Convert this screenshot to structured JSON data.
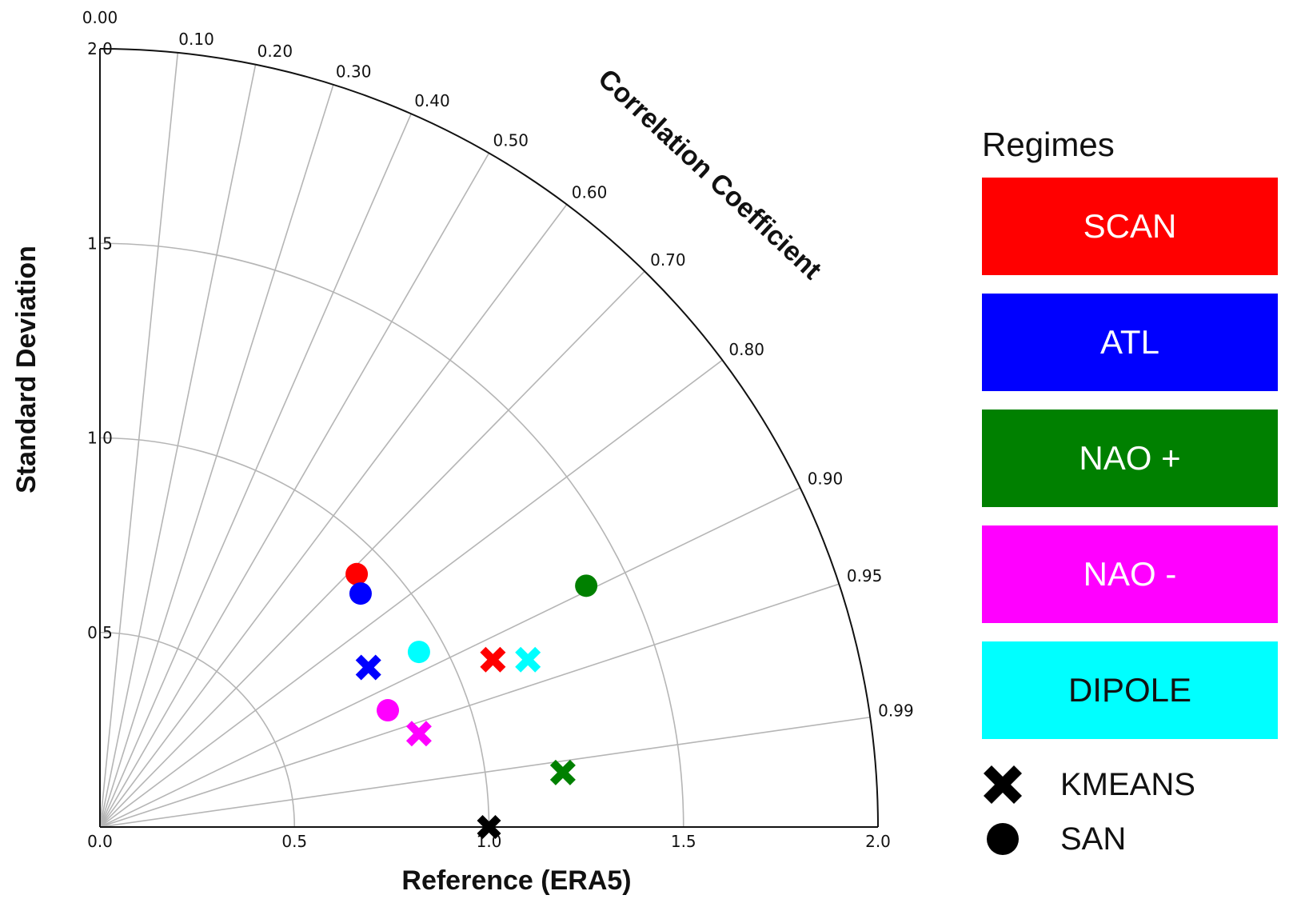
{
  "chart_data": {
    "type": "taylor-diagram",
    "title": "",
    "xlabel": "Reference (ERA5)",
    "ylabel": "Standard Deviation",
    "arc_label": "Correlation Coefficient",
    "std_max": 2.0,
    "std_ticks_x": [
      "0.0",
      "0.5",
      "1.0",
      "1.5",
      "2.0"
    ],
    "std_ticks_y": [
      "0.5",
      "1.0",
      "1.5",
      "2.0"
    ],
    "std_tick_values": [
      0.0,
      0.5,
      1.0,
      1.5,
      2.0
    ],
    "std_rings": [
      0.5,
      1.0,
      1.5
    ],
    "correlation_ticks": [
      {
        "value": 0.0,
        "label": "0.00"
      },
      {
        "value": 0.1,
        "label": "0.10"
      },
      {
        "value": 0.2,
        "label": "0.20"
      },
      {
        "value": 0.3,
        "label": "0.30"
      },
      {
        "value": 0.4,
        "label": "0.40"
      },
      {
        "value": 0.5,
        "label": "0.50"
      },
      {
        "value": 0.6,
        "label": "0.60"
      },
      {
        "value": 0.7,
        "label": "0.70"
      },
      {
        "value": 0.8,
        "label": "0.80"
      },
      {
        "value": 0.9,
        "label": "0.90"
      },
      {
        "value": 0.95,
        "label": "0.95"
      },
      {
        "value": 0.99,
        "label": "0.99"
      }
    ],
    "grid": true,
    "reference": {
      "std": 1.0,
      "correlation": 1.0,
      "color": "#000000",
      "marker": "cross"
    },
    "points": [
      {
        "regime": "SCAN",
        "method": "SAN",
        "x": 0.66,
        "y": 0.65
      },
      {
        "regime": "ATL",
        "method": "SAN",
        "x": 0.67,
        "y": 0.6
      },
      {
        "regime": "NAO +",
        "method": "SAN",
        "x": 1.25,
        "y": 0.62
      },
      {
        "regime": "NAO -",
        "method": "SAN",
        "x": 0.74,
        "y": 0.3
      },
      {
        "regime": "DIPOLE",
        "method": "SAN",
        "x": 0.82,
        "y": 0.45
      },
      {
        "regime": "SCAN",
        "method": "KMEANS",
        "x": 1.01,
        "y": 0.43
      },
      {
        "regime": "ATL",
        "method": "KMEANS",
        "x": 0.69,
        "y": 0.41
      },
      {
        "regime": "NAO +",
        "method": "KMEANS",
        "x": 1.19,
        "y": 0.14
      },
      {
        "regime": "NAO -",
        "method": "KMEANS",
        "x": 0.82,
        "y": 0.24
      },
      {
        "regime": "DIPOLE",
        "method": "KMEANS",
        "x": 1.1,
        "y": 0.43
      }
    ]
  },
  "legend": {
    "title": "Regimes",
    "regimes": [
      {
        "label": "SCAN",
        "color": "#ff0000",
        "text_color": "#ffffff"
      },
      {
        "label": "ATL",
        "color": "#0000ff",
        "text_color": "#ffffff"
      },
      {
        "label": "NAO +",
        "color": "#008000",
        "text_color": "#ffffff"
      },
      {
        "label": "NAO -",
        "color": "#ff00ff",
        "text_color": "#ffffff"
      },
      {
        "label": "DIPOLE",
        "color": "#00ffff",
        "text_color": "#111111"
      }
    ],
    "markers": [
      {
        "label": "KMEANS",
        "icon": "cross-marker-icon"
      },
      {
        "label": "SAN",
        "icon": "circle-marker-icon"
      }
    ]
  }
}
